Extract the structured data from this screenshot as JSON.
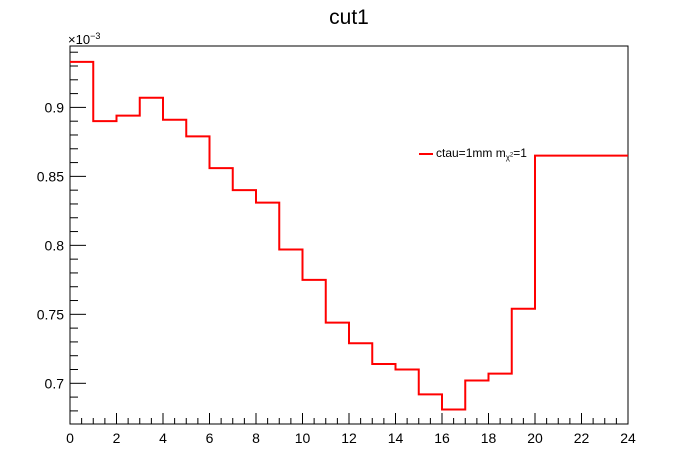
{
  "chart_data": {
    "type": "line",
    "title": "cut1",
    "y_multiplier": "×10",
    "y_exponent": "−3",
    "legend": {
      "entry_main": "ctau=1mm m",
      "entry_sub": "χ",
      "entry_sub_sup": "2",
      "entry_tail": "=1",
      "position": "top-right",
      "color": "#ff0000"
    },
    "xlim": [
      0,
      24
    ],
    "ylim": [
      0.6705,
      0.9445
    ],
    "x_ticks": [
      "0",
      "2",
      "4",
      "6",
      "8",
      "10",
      "12",
      "14",
      "16",
      "18",
      "20",
      "22",
      "24"
    ],
    "y_ticks": [
      "0.7",
      "0.75",
      "0.8",
      "0.85",
      "0.9"
    ],
    "grid": false,
    "series": [
      {
        "name": "ctau=1mm mχ2=1",
        "color": "#ff0000",
        "bin_edges": [
          0,
          1,
          2,
          3,
          4,
          5,
          6,
          7,
          8,
          9,
          10,
          11,
          12,
          13,
          14,
          15,
          16,
          17,
          18,
          19,
          20,
          24
        ],
        "values": [
          0.933,
          0.89,
          0.894,
          0.907,
          0.891,
          0.879,
          0.856,
          0.84,
          0.831,
          0.797,
          0.775,
          0.744,
          0.729,
          0.714,
          0.71,
          0.692,
          0.681,
          0.702,
          0.707,
          0.754,
          0.865
        ]
      }
    ]
  }
}
